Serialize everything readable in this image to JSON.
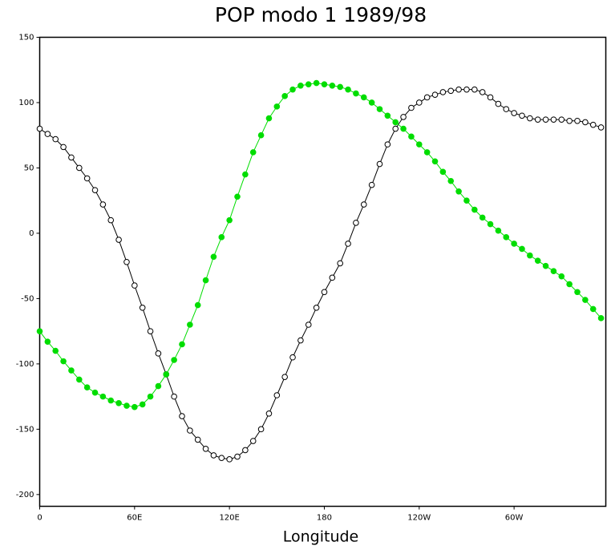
{
  "chart_data": {
    "type": "line",
    "title": "POP modo 1 1989/98",
    "xlabel": "Longitude",
    "x": [
      0,
      5,
      10,
      15,
      20,
      25,
      30,
      35,
      40,
      45,
      50,
      55,
      60,
      65,
      70,
      75,
      80,
      85,
      90,
      95,
      100,
      105,
      110,
      115,
      120,
      125,
      130,
      135,
      140,
      145,
      150,
      155,
      160,
      165,
      170,
      175,
      180,
      185,
      190,
      195,
      200,
      205,
      210,
      215,
      220,
      225,
      230,
      235,
      240,
      245,
      250,
      255,
      260,
      265,
      270,
      275,
      280,
      285,
      290,
      295,
      300,
      305,
      310,
      315,
      320,
      325,
      330,
      335,
      340,
      345,
      350,
      355
    ],
    "series": [
      {
        "color": "#000000",
        "filled": false,
        "values": [
          80,
          76,
          72,
          66,
          58,
          50,
          42,
          33,
          22,
          10,
          -5,
          -22,
          -40,
          -57,
          -75,
          -92,
          -108,
          -125,
          -140,
          -151,
          -158,
          -165,
          -170,
          -172,
          -173,
          -171,
          -166,
          -159,
          -150,
          -138,
          -124,
          -110,
          -95,
          -82,
          -70,
          -57,
          -45,
          -34,
          -23,
          -8,
          8,
          22,
          37,
          53,
          68,
          80,
          89,
          96,
          100,
          104,
          106,
          108,
          109,
          110,
          110,
          110,
          108,
          104,
          99,
          95,
          92,
          90,
          88,
          87,
          87,
          87,
          87,
          86,
          86,
          85,
          83,
          81
        ]
      },
      {
        "color": "#00dd00",
        "filled": true,
        "values": [
          -75,
          -83,
          -90,
          -98,
          -105,
          -112,
          -118,
          -122,
          -125,
          -128,
          -130,
          -132,
          -133,
          -131,
          -125,
          -117,
          -108,
          -97,
          -85,
          -70,
          -55,
          -36,
          -18,
          -3,
          10,
          28,
          45,
          62,
          75,
          88,
          97,
          105,
          110,
          113,
          114,
          115,
          114,
          113,
          112,
          110,
          107,
          104,
          100,
          95,
          90,
          85,
          80,
          74,
          68,
          62,
          55,
          47,
          40,
          32,
          25,
          18,
          12,
          7,
          2,
          -3,
          -8,
          -12,
          -17,
          -21,
          -25,
          -29,
          -33,
          -39,
          -45,
          -51,
          -58,
          -65
        ]
      }
    ],
    "xlim": [
      0,
      358
    ],
    "ylim": [
      -209,
      150
    ],
    "xticks": [
      0,
      {
        "value": 60,
        "label": "60E"
      },
      {
        "value": 120,
        "label": "120E"
      },
      180,
      {
        "value": 240,
        "label": "120W"
      },
      {
        "value": 300,
        "label": "60W"
      }
    ],
    "yticks": [
      150,
      100,
      50,
      0,
      -50,
      -100,
      -150,
      -200
    ]
  }
}
